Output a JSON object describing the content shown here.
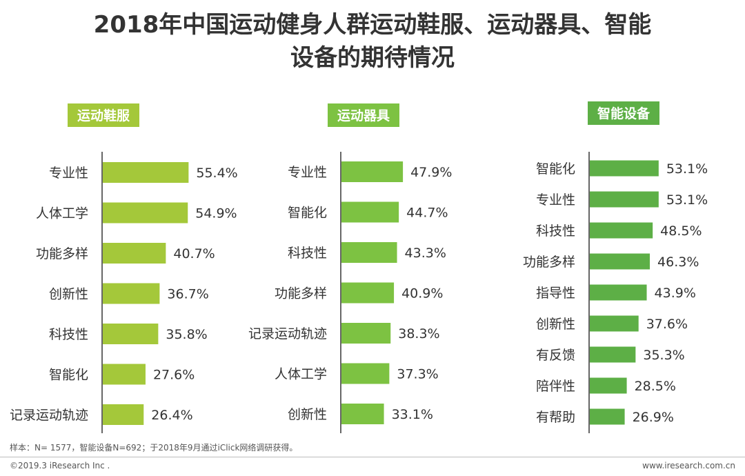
{
  "header": {
    "title_line1": "2018年中国运动健身人群运动鞋服、运动器具、智能",
    "title_line2": "设备的期待情况"
  },
  "chart_data": [
    {
      "type": "bar",
      "orientation": "horizontal",
      "title": "运动鞋服",
      "color": "#A4C83A",
      "categories": [
        "专业性",
        "人体工学",
        "功能多样",
        "创新性",
        "科技性",
        "智能化",
        "记录运动轨迹"
      ],
      "values": [
        55.4,
        54.9,
        40.7,
        36.7,
        35.8,
        27.6,
        26.4
      ],
      "labels": [
        "55.4%",
        "54.9%",
        "40.7%",
        "36.7%",
        "35.8%",
        "27.6%",
        "26.4%"
      ],
      "unit": "%"
    },
    {
      "type": "bar",
      "orientation": "horizontal",
      "title": "运动器具",
      "color": "#7DC242",
      "categories": [
        "专业性",
        "智能化",
        "科技性",
        "功能多样",
        "记录运动轨迹",
        "人体工学",
        "创新性"
      ],
      "values": [
        47.9,
        44.7,
        43.3,
        40.9,
        38.3,
        37.3,
        33.1
      ],
      "labels": [
        "47.9%",
        "44.7%",
        "43.3%",
        "40.9%",
        "38.3%",
        "37.3%",
        "33.1%"
      ],
      "unit": "%"
    },
    {
      "type": "bar",
      "orientation": "horizontal",
      "title": "智能设备",
      "color": "#5DAF46",
      "categories": [
        "智能化",
        "专业性",
        "科技性",
        "功能多样",
        "指导性",
        "创新性",
        "有反馈",
        "陪伴性",
        "有帮助"
      ],
      "values": [
        53.1,
        53.1,
        48.5,
        46.3,
        43.9,
        37.6,
        35.3,
        28.5,
        26.9
      ],
      "labels": [
        "53.1%",
        "53.1%",
        "48.5%",
        "46.3%",
        "43.9%",
        "37.6%",
        "35.3%",
        "28.5%",
        "26.9%"
      ],
      "unit": "%"
    }
  ],
  "footer": {
    "note": "样本：N= 1577，智能设备N=692；于2018年9月通过iClick网络调研获得。",
    "copyright": "©2019.3 iResearch Inc .",
    "website": "www.iresearch.com.cn"
  }
}
